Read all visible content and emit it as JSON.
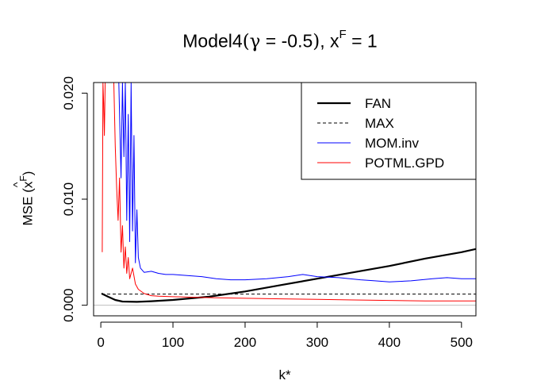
{
  "chart_data": {
    "type": "line",
    "title": {
      "prefix": "Model4",
      "gamma_symbol": "γ",
      "gamma_expr": " = -0.5",
      "var": "x",
      "var_sup": "F",
      "value_expr": " = 1"
    },
    "xlabel": "k*",
    "ylabel": {
      "prefix": "MSE",
      "var": "x",
      "var_sup": "F"
    },
    "xlim": [
      -10,
      520
    ],
    "ylim": [
      -0.001,
      0.021
    ],
    "x_ticks": [
      0,
      100,
      200,
      300,
      400,
      500
    ],
    "y_ticks": [
      0.0,
      0.01,
      0.02
    ],
    "y_tick_labels": [
      "0.000",
      "0.010",
      "0.020"
    ],
    "reference_line_y": 0,
    "legend_position": "top-right",
    "series": [
      {
        "name": "FAN",
        "color": "#000000",
        "style": "solid",
        "width": "thick",
        "x": [
          1,
          10,
          20,
          30,
          50,
          70,
          100,
          150,
          200,
          250,
          300,
          350,
          400,
          450,
          500,
          520
        ],
        "y": [
          0.0011,
          0.0008,
          0.0005,
          0.00035,
          0.00032,
          0.00038,
          0.0005,
          0.0008,
          0.0013,
          0.0019,
          0.0025,
          0.0031,
          0.0037,
          0.0044,
          0.005,
          0.0053
        ]
      },
      {
        "name": "MAX",
        "color": "#000000",
        "style": "dashed",
        "width": "thin",
        "x": [
          1,
          520
        ],
        "y": [
          0.00105,
          0.00105
        ]
      },
      {
        "name": "MOM.inv",
        "color": "#0000ff",
        "style": "solid",
        "width": "thin",
        "x": [
          25,
          28,
          30,
          32,
          34,
          36,
          38,
          40,
          42,
          44,
          46,
          48,
          50,
          52,
          55,
          60,
          70,
          80,
          90,
          100,
          120,
          140,
          160,
          180,
          200,
          230,
          260,
          280,
          290,
          300,
          330,
          360,
          380,
          400,
          430,
          460,
          480,
          500,
          520
        ],
        "y": [
          0.021,
          0.012,
          0.021,
          0.014,
          0.021,
          0.008,
          0.018,
          0.006,
          0.021,
          0.007,
          0.016,
          0.004,
          0.009,
          0.0045,
          0.0035,
          0.0031,
          0.0032,
          0.003,
          0.0029,
          0.0029,
          0.0028,
          0.0027,
          0.0025,
          0.0024,
          0.0024,
          0.0025,
          0.0027,
          0.0029,
          0.0028,
          0.0027,
          0.0026,
          0.0024,
          0.0023,
          0.0022,
          0.0023,
          0.0025,
          0.0026,
          0.0025,
          0.0025
        ]
      },
      {
        "name": "POTML.GPD",
        "color": "#ff0000",
        "style": "solid",
        "width": "thin",
        "x": [
          2,
          3,
          4,
          5,
          6,
          8,
          10,
          12,
          14,
          16,
          18,
          20,
          22,
          24,
          26,
          28,
          30,
          32,
          34,
          36,
          38,
          40,
          44,
          48,
          52,
          60,
          70,
          80,
          100,
          130,
          160,
          200,
          250,
          300,
          350,
          400,
          450,
          500,
          520
        ],
        "y": [
          0.005,
          0.021,
          0.019,
          0.016,
          0.021,
          0.021,
          0.021,
          0.021,
          0.021,
          0.021,
          0.021,
          0.015,
          0.011,
          0.008,
          0.012,
          0.005,
          0.0075,
          0.0035,
          0.0055,
          0.003,
          0.0045,
          0.0025,
          0.0035,
          0.002,
          0.0015,
          0.0011,
          0.0009,
          0.00085,
          0.0008,
          0.00075,
          0.0007,
          0.00065,
          0.0006,
          0.00055,
          0.0005,
          0.00045,
          0.0004,
          0.0004,
          0.0004
        ]
      }
    ]
  }
}
